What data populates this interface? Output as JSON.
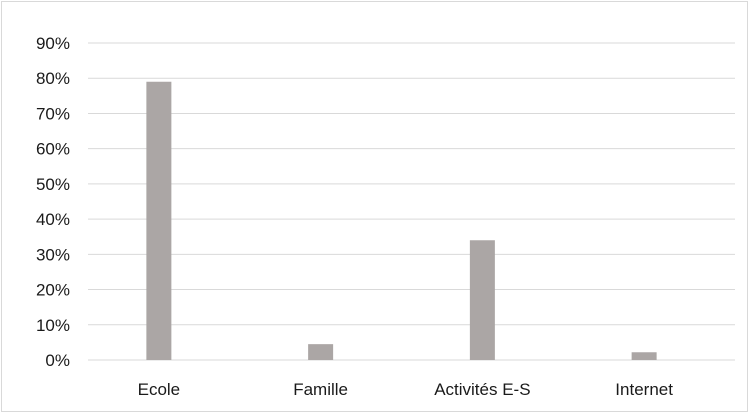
{
  "chart_data": {
    "type": "bar",
    "categories": [
      "Ecole",
      "Famille",
      "Activités E-S",
      "Internet"
    ],
    "values": [
      79,
      4.5,
      34,
      2.2
    ],
    "ylim": [
      0,
      90
    ],
    "y_ticks": [
      "0%",
      "10%",
      "20%",
      "30%",
      "40%",
      "50%",
      "60%",
      "70%",
      "80%",
      "90%"
    ],
    "grid": true,
    "legend": "none"
  },
  "colors": {
    "bar": "#aba6a5",
    "grid": "#d9d9d9",
    "border": "#d9d9d9",
    "text": "#1a1a1a"
  }
}
